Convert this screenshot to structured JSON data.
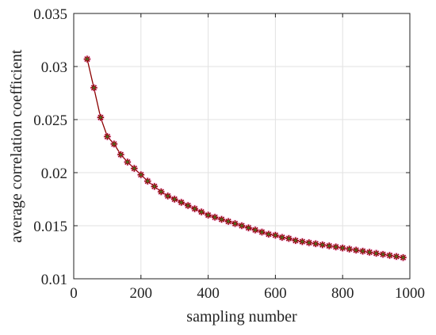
{
  "chart_data": {
    "type": "line",
    "title": "",
    "xlabel": "sampling number",
    "ylabel": "average correlation coefficient",
    "xlim": [
      0,
      1000
    ],
    "ylim": [
      0.01,
      0.035
    ],
    "xticks": [
      0,
      200,
      400,
      600,
      800,
      1000
    ],
    "xtick_labels": [
      "0",
      "200",
      "400",
      "600",
      "800",
      "1000"
    ],
    "yticks": [
      0.01,
      0.015,
      0.02,
      0.025,
      0.03,
      0.035
    ],
    "ytick_labels": [
      "0.01",
      "0.015",
      "0.02",
      "0.025",
      "0.03",
      "0.035"
    ],
    "grid": true,
    "line_color": "#8b0000",
    "marker": "asterisk",
    "marker_color": "#4d6b1e",
    "marker_glow_color": "#ff88dd",
    "series": [
      {
        "x": [
          40,
          60,
          80,
          100,
          120,
          140,
          160,
          180,
          200,
          220,
          240,
          260,
          280,
          300,
          320,
          340,
          360,
          380,
          400,
          420,
          440,
          460,
          480,
          500,
          520,
          540,
          560,
          580,
          600,
          620,
          640,
          660,
          680,
          700,
          720,
          740,
          760,
          780,
          800,
          820,
          840,
          860,
          880,
          900,
          920,
          940,
          960,
          980
        ],
        "y": [
          0.0307,
          0.028,
          0.0252,
          0.0234,
          0.0227,
          0.0217,
          0.021,
          0.0204,
          0.0198,
          0.0192,
          0.0187,
          0.0182,
          0.0178,
          0.0175,
          0.0172,
          0.0169,
          0.0166,
          0.0163,
          0.016,
          0.0158,
          0.0156,
          0.0154,
          0.0152,
          0.015,
          0.0148,
          0.0146,
          0.0144,
          0.0142,
          0.0141,
          0.0139,
          0.0138,
          0.0136,
          0.0135,
          0.0134,
          0.0133,
          0.0132,
          0.0131,
          0.013,
          0.0129,
          0.0128,
          0.0127,
          0.0126,
          0.0125,
          0.0124,
          0.0123,
          0.0122,
          0.0121,
          0.012
        ]
      }
    ]
  }
}
